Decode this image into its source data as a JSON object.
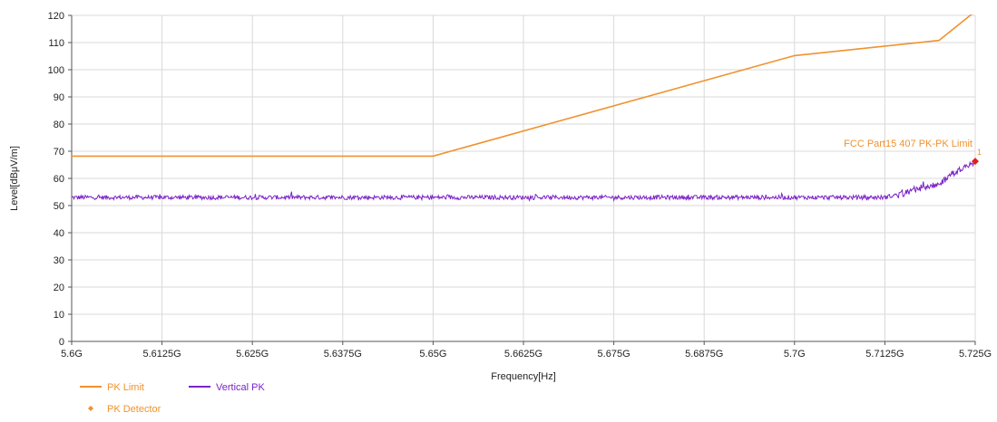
{
  "chart_data": {
    "type": "line",
    "xlabel": "Frequency[Hz]",
    "ylabel": "Level[dBμV/m]",
    "xlim": [
      5.6,
      5.725
    ],
    "ylim": [
      0,
      120
    ],
    "x_ticks": [
      "5.6G",
      "5.6125G",
      "5.625G",
      "5.6375G",
      "5.65G",
      "5.6625G",
      "5.675G",
      "5.6875G",
      "5.7G",
      "5.7125G",
      "5.725G"
    ],
    "y_ticks": [
      "0",
      "10",
      "20",
      "30",
      "40",
      "50",
      "60",
      "70",
      "80",
      "90",
      "100",
      "110",
      "120"
    ],
    "grid": true,
    "series": [
      {
        "name": "PK Limit",
        "color": "#F0922E",
        "points": [
          [
            5.6,
            68.2
          ],
          [
            5.65,
            68.2
          ],
          [
            5.7,
            105.2
          ],
          [
            5.72,
            110.8
          ],
          [
            5.725,
            121.5
          ]
        ]
      },
      {
        "name": "Vertical PK",
        "color": "#7B22C8",
        "baseline": 53,
        "rise_points": [
          [
            5.7125,
            53
          ],
          [
            5.715,
            54.5
          ],
          [
            5.7175,
            56.5
          ],
          [
            5.72,
            57.5
          ],
          [
            5.7215,
            60.5
          ],
          [
            5.723,
            63.5
          ],
          [
            5.725,
            66
          ]
        ]
      },
      {
        "name": "PK Detector",
        "color": "#E02020",
        "points": [
          [
            5.725,
            66.3
          ]
        ]
      }
    ],
    "annotation": {
      "text": "FCC Part15 407 PK-PK Limit",
      "color": "#F0922E",
      "marker_label": "1"
    },
    "legend": {
      "placement": "bottom-left",
      "items": [
        {
          "label": "PK Limit",
          "color": "#F0922E",
          "kind": "line"
        },
        {
          "label": "Vertical PK",
          "color": "#7B22C8",
          "kind": "line"
        },
        {
          "label": "PK Detector",
          "color": "#F0922E",
          "kind": "marker"
        }
      ]
    }
  }
}
